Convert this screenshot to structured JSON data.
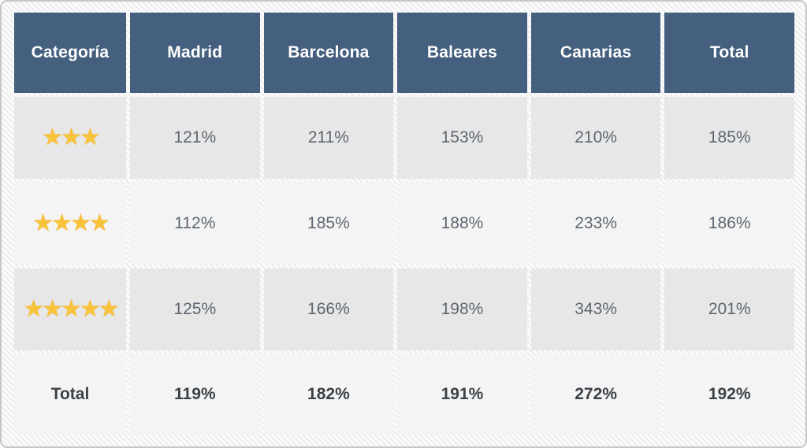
{
  "table": {
    "columns": [
      "Categoría",
      "Madrid",
      "Barcelona",
      "Baleares",
      "Canarias",
      "Total"
    ],
    "rows": [
      {
        "category_stars": 3,
        "stars_text": "★★★",
        "values": [
          "121%",
          "211%",
          "153%",
          "210%",
          "185%"
        ]
      },
      {
        "category_stars": 4,
        "stars_text": "★★★★",
        "values": [
          "112%",
          "185%",
          "188%",
          "233%",
          "186%"
        ]
      },
      {
        "category_stars": 5,
        "stars_text": "★★★★★",
        "values": [
          "125%",
          "166%",
          "198%",
          "343%",
          "201%"
        ]
      }
    ],
    "total_row": {
      "label": "Total",
      "values": [
        "119%",
        "182%",
        "191%",
        "272%",
        "192%"
      ]
    }
  },
  "chart_data": {
    "type": "table",
    "title": "",
    "columns": [
      "Categoría",
      "Madrid",
      "Barcelona",
      "Baleares",
      "Canarias",
      "Total"
    ],
    "rows": [
      {
        "category": "3 estrellas",
        "madrid": "121%",
        "barcelona": "211%",
        "baleares": "153%",
        "canarias": "210%",
        "total": "185%"
      },
      {
        "category": "4 estrellas",
        "madrid": "112%",
        "barcelona": "185%",
        "baleares": "188%",
        "canarias": "233%",
        "total": "186%"
      },
      {
        "category": "5 estrellas",
        "madrid": "125%",
        "barcelona": "166%",
        "baleares": "198%",
        "canarias": "343%",
        "total": "201%"
      },
      {
        "category": "Total",
        "madrid": "119%",
        "barcelona": "182%",
        "baleares": "191%",
        "canarias": "272%",
        "total": "192%"
      }
    ]
  },
  "colors": {
    "header_background": "#44607e",
    "header_text": "#ffffff",
    "row_dark": "#e7e7e7",
    "row_light": "#f4f4f4",
    "value_text": "#5d6670",
    "total_text": "#3a4147",
    "star": "#f8c23a",
    "frame_border": "#c3c8cc"
  }
}
